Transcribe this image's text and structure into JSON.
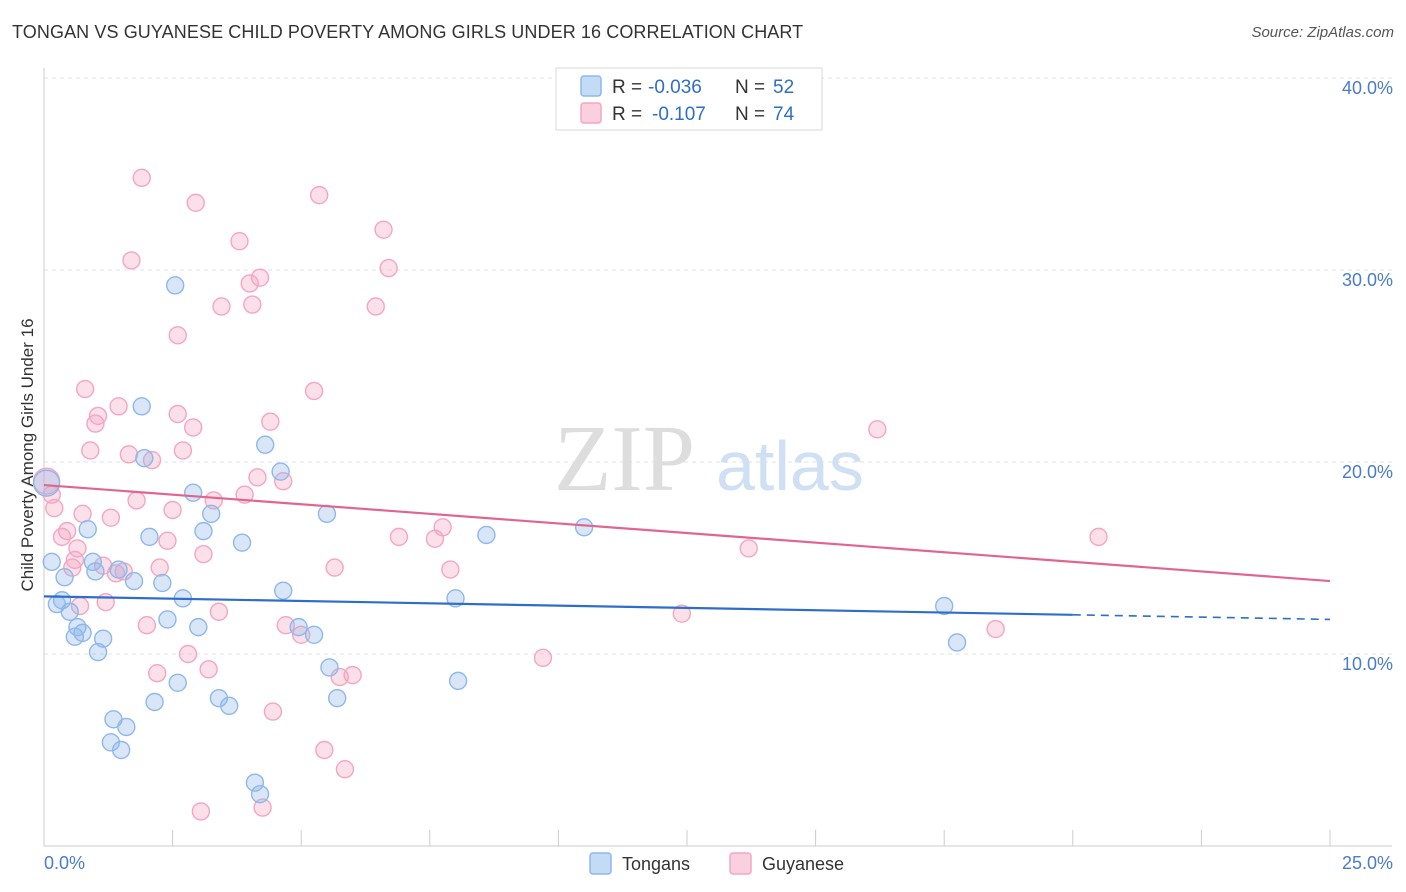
{
  "title": "TONGAN VS GUYANESE CHILD POVERTY AMONG GIRLS UNDER 16 CORRELATION CHART",
  "source": "Source: ZipAtlas.com",
  "watermark": {
    "zip": "ZIP",
    "atlas": "atlas"
  },
  "legend_top": [
    {
      "r_label": "R =",
      "r_value": "-0.036",
      "n_label": "N =",
      "n_value": "52"
    },
    {
      "r_label": "R =",
      "r_value": "-0.107",
      "n_label": "N =",
      "n_value": "74"
    }
  ],
  "chart_data": {
    "type": "scatter",
    "title": "TONGAN VS GUYANESE CHILD POVERTY AMONG GIRLS UNDER 16 CORRELATION CHART",
    "xlabel": "",
    "ylabel": "Child Poverty Among Girls Under 16",
    "xlim": [
      0,
      25
    ],
    "ylim": [
      0,
      40
    ],
    "x_tick_labels": [
      "0.0%",
      "25.0%"
    ],
    "y_ticks": [
      10,
      20,
      30,
      40
    ],
    "y_tick_labels": [
      "10.0%",
      "20.0%",
      "30.0%",
      "40.0%"
    ],
    "grid": true,
    "legend_position": "top-center",
    "series": [
      {
        "name": "Tongans",
        "color": "#8fb8ea",
        "line_color": "#2f6ec8",
        "trend": {
          "x0": 0,
          "y0": 13.0,
          "x1": 25,
          "y1": 11.8,
          "solid_until": 20
        },
        "points": [
          [
            0.15,
            14.8
          ],
          [
            0.25,
            12.6
          ],
          [
            0.35,
            12.8
          ],
          [
            0.4,
            14.0
          ],
          [
            0.5,
            12.2
          ],
          [
            0.6,
            10.9
          ],
          [
            0.65,
            11.4
          ],
          [
            0.75,
            11.1
          ],
          [
            0.85,
            16.5
          ],
          [
            0.95,
            14.8
          ],
          [
            1.0,
            14.3
          ],
          [
            1.05,
            10.1
          ],
          [
            1.15,
            10.8
          ],
          [
            1.3,
            5.4
          ],
          [
            1.35,
            6.6
          ],
          [
            1.45,
            14.4
          ],
          [
            1.5,
            5.0
          ],
          [
            1.6,
            6.2
          ],
          [
            1.75,
            13.8
          ],
          [
            1.9,
            22.9
          ],
          [
            1.95,
            20.2
          ],
          [
            2.05,
            16.1
          ],
          [
            2.15,
            7.5
          ],
          [
            2.3,
            13.7
          ],
          [
            2.4,
            11.8
          ],
          [
            2.55,
            29.2
          ],
          [
            2.6,
            8.5
          ],
          [
            2.7,
            12.9
          ],
          [
            2.9,
            18.4
          ],
          [
            3.1,
            16.4
          ],
          [
            3.25,
            17.3
          ],
          [
            3.4,
            7.7
          ],
          [
            3.6,
            7.3
          ],
          [
            3.85,
            15.8
          ],
          [
            4.1,
            3.3
          ],
          [
            4.2,
            2.7
          ],
          [
            4.3,
            20.9
          ],
          [
            4.6,
            19.5
          ],
          [
            4.65,
            13.3
          ],
          [
            4.95,
            11.4
          ],
          [
            5.25,
            11.0
          ],
          [
            5.5,
            17.3
          ],
          [
            5.55,
            9.3
          ],
          [
            5.7,
            7.7
          ],
          [
            8.0,
            12.9
          ],
          [
            8.05,
            8.6
          ],
          [
            8.6,
            16.2
          ],
          [
            10.5,
            16.6
          ],
          [
            17.5,
            12.5
          ],
          [
            17.75,
            10.6
          ],
          [
            0.05,
            18.9
          ],
          [
            3.0,
            11.4
          ]
        ]
      },
      {
        "name": "Guyanese",
        "color": "#f4a6c0",
        "line_color": "#e0668e",
        "trend": {
          "x0": 0,
          "y0": 18.8,
          "x1": 25,
          "y1": 13.8
        },
        "points": [
          [
            0.05,
            19.0
          ],
          [
            0.15,
            18.3
          ],
          [
            0.2,
            17.6
          ],
          [
            0.35,
            16.1
          ],
          [
            0.45,
            16.4
          ],
          [
            0.55,
            14.5
          ],
          [
            0.6,
            14.9
          ],
          [
            0.65,
            15.5
          ],
          [
            0.7,
            12.5
          ],
          [
            0.75,
            17.3
          ],
          [
            0.8,
            23.8
          ],
          [
            0.9,
            20.6
          ],
          [
            1.0,
            22.0
          ],
          [
            1.05,
            22.4
          ],
          [
            1.15,
            14.6
          ],
          [
            1.2,
            12.7
          ],
          [
            1.3,
            17.1
          ],
          [
            1.4,
            14.2
          ],
          [
            1.45,
            22.9
          ],
          [
            1.55,
            14.3
          ],
          [
            1.65,
            20.4
          ],
          [
            1.7,
            30.5
          ],
          [
            1.8,
            18.0
          ],
          [
            1.9,
            34.8
          ],
          [
            2.0,
            11.5
          ],
          [
            2.1,
            20.1
          ],
          [
            2.2,
            9.0
          ],
          [
            2.25,
            14.5
          ],
          [
            2.4,
            15.9
          ],
          [
            2.5,
            17.5
          ],
          [
            2.6,
            22.5
          ],
          [
            2.6,
            26.6
          ],
          [
            2.7,
            20.6
          ],
          [
            2.8,
            10.0
          ],
          [
            2.9,
            21.8
          ],
          [
            2.95,
            33.5
          ],
          [
            3.05,
            1.8
          ],
          [
            3.1,
            15.2
          ],
          [
            3.2,
            9.2
          ],
          [
            3.3,
            18.0
          ],
          [
            3.4,
            12.2
          ],
          [
            3.45,
            28.1
          ],
          [
            3.8,
            31.5
          ],
          [
            3.9,
            18.3
          ],
          [
            4.0,
            29.3
          ],
          [
            4.05,
            28.2
          ],
          [
            4.15,
            19.2
          ],
          [
            4.2,
            29.6
          ],
          [
            4.25,
            2.0
          ],
          [
            4.4,
            22.1
          ],
          [
            4.45,
            7.0
          ],
          [
            4.65,
            19.0
          ],
          [
            4.7,
            11.5
          ],
          [
            5.0,
            11.0
          ],
          [
            5.25,
            23.7
          ],
          [
            5.35,
            33.9
          ],
          [
            5.45,
            5.0
          ],
          [
            5.65,
            14.5
          ],
          [
            5.75,
            8.8
          ],
          [
            5.85,
            4.0
          ],
          [
            6.0,
            8.9
          ],
          [
            6.45,
            28.1
          ],
          [
            6.6,
            32.1
          ],
          [
            6.7,
            30.1
          ],
          [
            6.9,
            16.1
          ],
          [
            7.6,
            16.0
          ],
          [
            7.75,
            16.6
          ],
          [
            7.9,
            14.4
          ],
          [
            9.7,
            9.8
          ],
          [
            12.4,
            12.1
          ],
          [
            13.7,
            15.5
          ],
          [
            16.2,
            21.7
          ],
          [
            18.5,
            11.3
          ],
          [
            20.5,
            16.1
          ]
        ]
      }
    ]
  }
}
